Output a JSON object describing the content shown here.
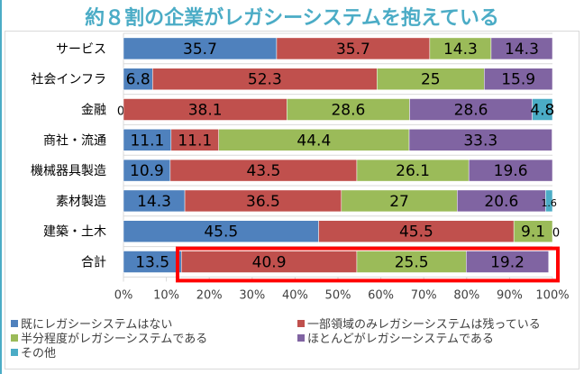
{
  "chart_data": {
    "type": "bar",
    "orientation": "horizontal-stacked-100",
    "title": "約８割の企業がレガシーシステムを抱えている",
    "categories": [
      "サービス",
      "社会インフラ",
      "金融",
      "商社・流通",
      "機械器具製造",
      "素材製造",
      "建築・土木",
      "合計"
    ],
    "series": [
      {
        "name": "既にレガシーシステムはない",
        "color": "#4f81bd",
        "values": [
          35.7,
          6.8,
          0,
          11.1,
          10.9,
          14.3,
          45.5,
          13.5
        ]
      },
      {
        "name": "一部領域のみレガシーシステムは残っている",
        "color": "#c0504d",
        "values": [
          35.7,
          52.3,
          38.1,
          11.1,
          43.5,
          36.5,
          45.5,
          40.9
        ]
      },
      {
        "name": "半分程度がレガシーシステムである",
        "color": "#9bbb59",
        "values": [
          14.3,
          25,
          28.6,
          44.4,
          26.1,
          27,
          9.1,
          25.5
        ]
      },
      {
        "name": "ほとんどがレガシーシステムである",
        "color": "#8064a2",
        "values": [
          14.3,
          15.9,
          28.6,
          33.3,
          19.6,
          20.6,
          null,
          19.2
        ]
      },
      {
        "name": "その他",
        "color": "#4bacc6",
        "values": [
          null,
          null,
          4.8,
          null,
          null,
          1.6,
          0,
          null
        ]
      }
    ],
    "xticks": [
      "0%",
      "10%",
      "20%",
      "30%",
      "40%",
      "50%",
      "60%",
      "70%",
      "80%",
      "90%",
      "100%"
    ],
    "xlim": [
      0,
      100
    ],
    "grid": true,
    "legend_position": "bottom",
    "highlight": "合計",
    "highlight_color": "#ff0000"
  }
}
